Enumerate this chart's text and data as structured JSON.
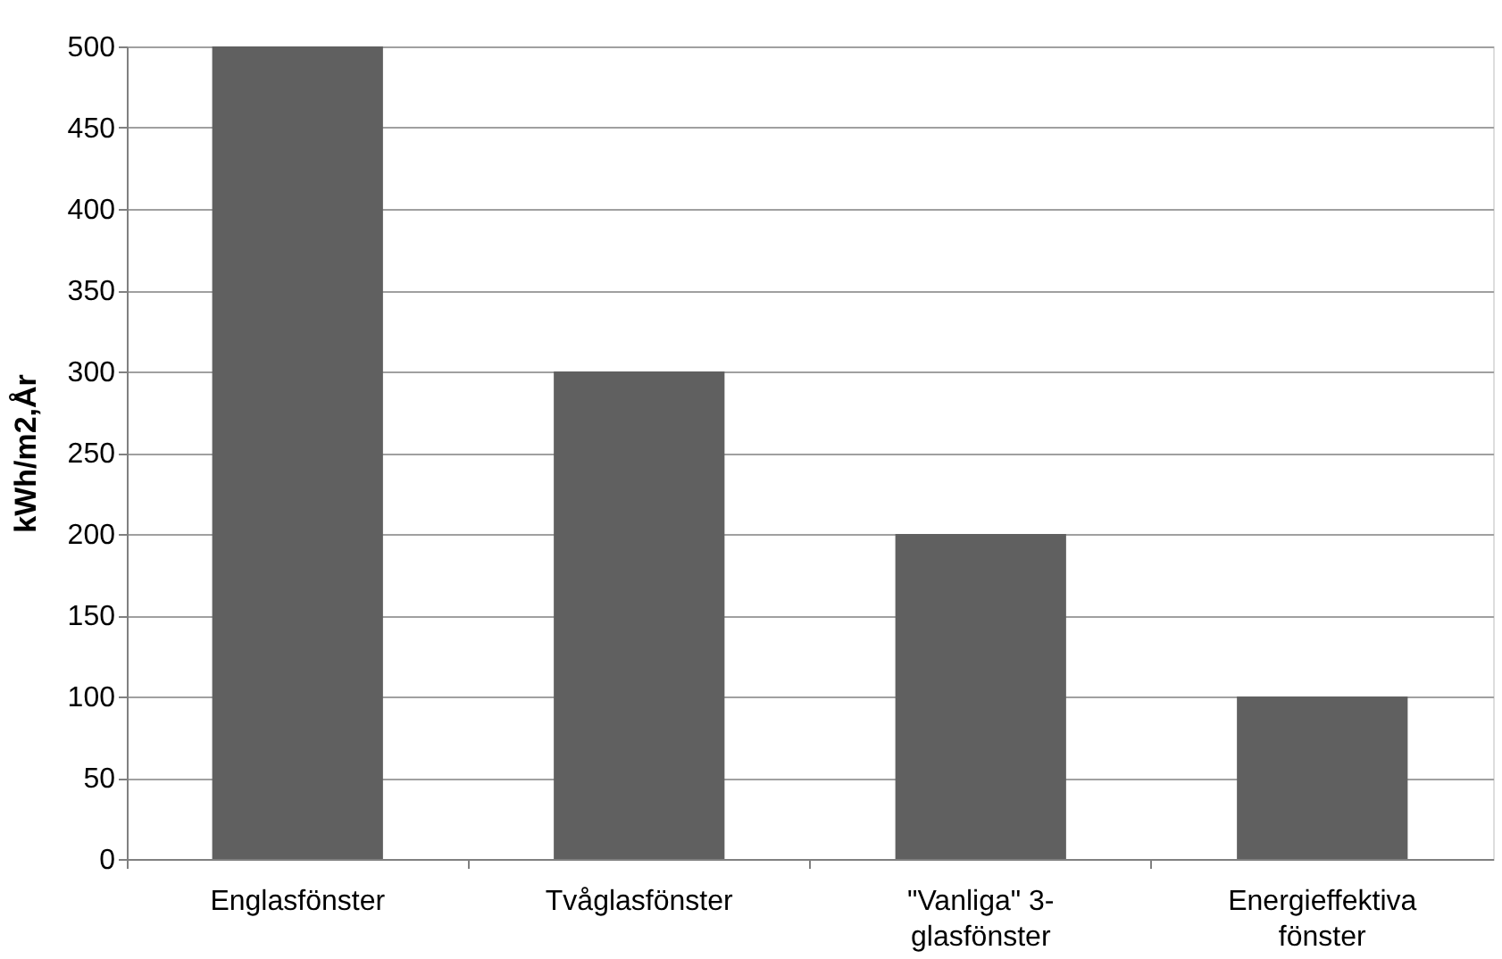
{
  "chart_data": {
    "type": "bar",
    "ylabel": "kWh/m2,År",
    "categories": [
      "Englasfönster",
      "Tvåglasfönster",
      "\"Vanliga\" 3-glasfönster",
      "Energieffektiva fönster"
    ],
    "values": [
      500,
      300,
      200,
      100
    ],
    "color": "#606060",
    "ylim": [
      0,
      500
    ],
    "yticks": [
      0,
      50,
      100,
      150,
      200,
      250,
      300,
      350,
      400,
      450,
      500
    ],
    "grid": "y"
  }
}
